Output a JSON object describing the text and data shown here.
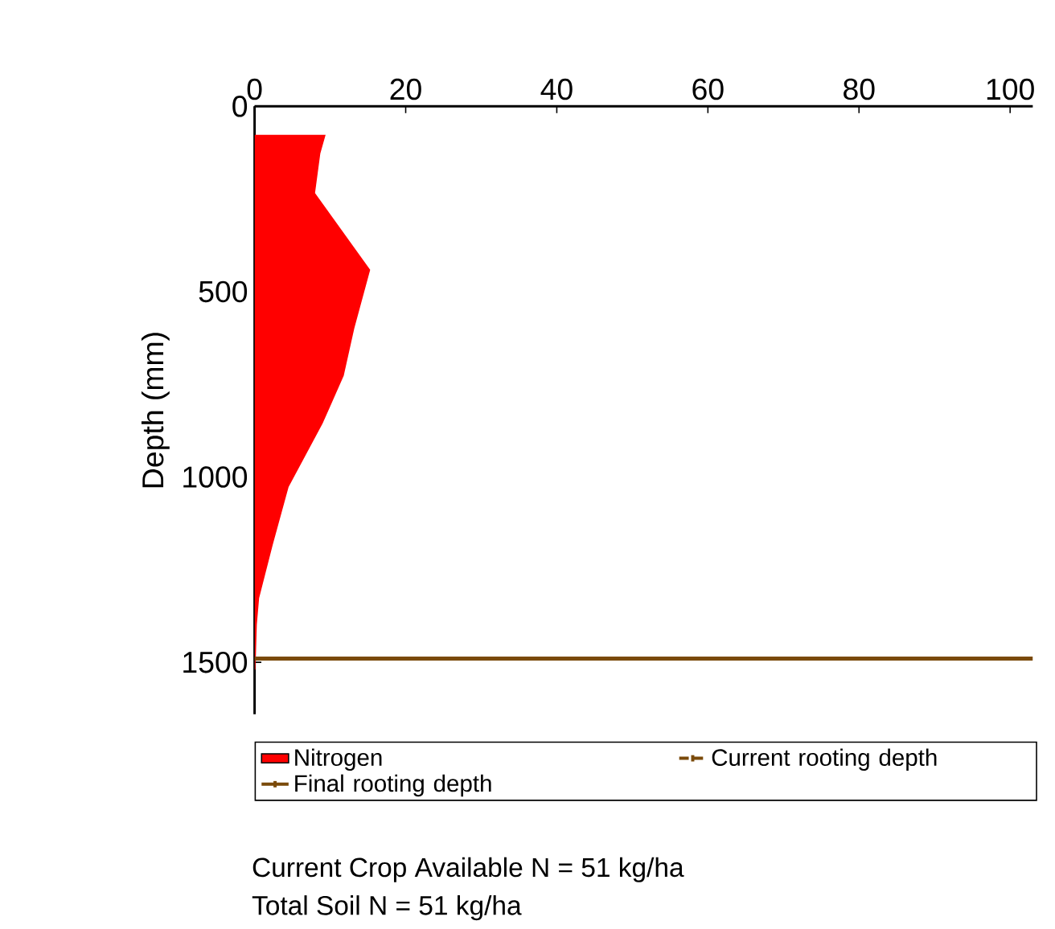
{
  "chart_data": {
    "type": "area",
    "orientation": "horizontal",
    "ylabel": "Depth (mm)",
    "xlim": [
      0,
      103
    ],
    "xticks": [
      0,
      20,
      40,
      60,
      80,
      100
    ],
    "ylim": [
      1640,
      0
    ],
    "yticks": [
      0,
      500,
      1000,
      1500
    ],
    "series": [
      {
        "name": "Nitrogen",
        "color": "#ff0000",
        "x": [
          77,
          127,
          234,
          441,
          599,
          727,
          856,
          1027,
          1183,
          1327,
          1398,
          1520
        ],
        "values": [
          9.4,
          8.7,
          8.0,
          15.3,
          13.2,
          11.8,
          9.0,
          4.5,
          2.4,
          0.6,
          0.3,
          0.1
        ]
      }
    ],
    "ref_lines": [
      {
        "axis": "y",
        "value": 1490,
        "label": "Current rooting depth",
        "color": "#7a4a0a",
        "line_style": "dashed"
      },
      {
        "axis": "y",
        "value": 1490,
        "label": "Final rooting depth",
        "color": "#7a4a0a",
        "line_style": "solid"
      }
    ],
    "legend": "bottom",
    "grid": false,
    "annotations": [
      "Current Crop Available N = 51 kg/ha",
      "Total Soil N = 51 kg/ha"
    ]
  }
}
